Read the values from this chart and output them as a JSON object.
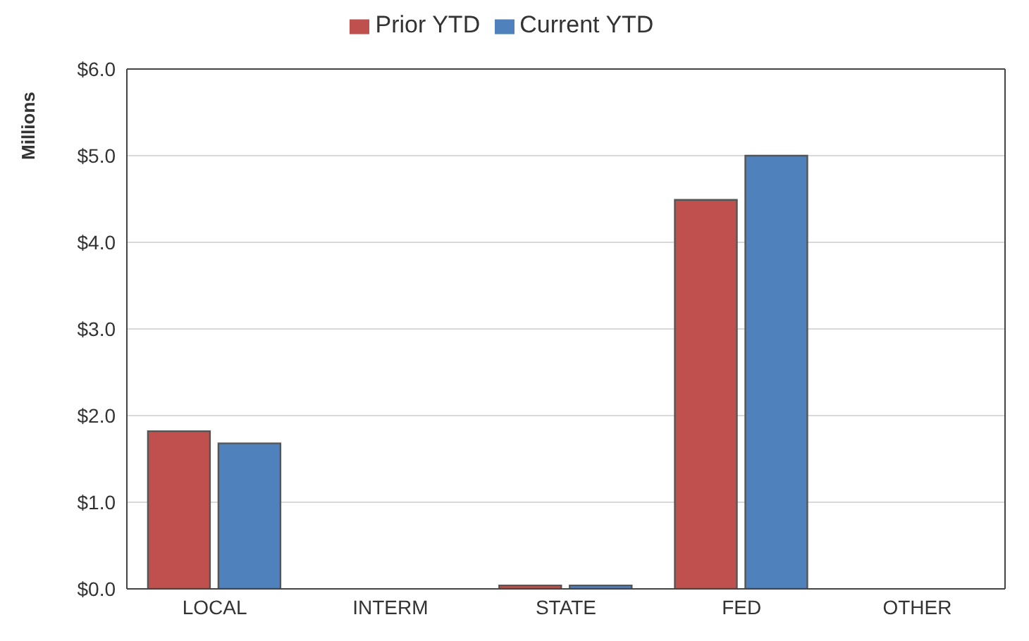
{
  "chart_data": {
    "type": "bar",
    "ylabel": "Millions",
    "categories": [
      "LOCAL",
      "INTERM",
      "STATE",
      "FED",
      "OTHER"
    ],
    "series": [
      {
        "name": "Prior YTD",
        "color": "#c0504d",
        "values": [
          1.82,
          0,
          0.04,
          4.49,
          0
        ]
      },
      {
        "name": "Current YTD",
        "color": "#4f81bd",
        "values": [
          1.68,
          0,
          0.04,
          5.0,
          0
        ]
      }
    ],
    "ylim": [
      0,
      6
    ],
    "yticks": [
      {
        "value": 0,
        "label": "$0.0"
      },
      {
        "value": 1,
        "label": "$1.0"
      },
      {
        "value": 2,
        "label": "$2.0"
      },
      {
        "value": 3,
        "label": "$3.0"
      },
      {
        "value": 4,
        "label": "$4.0"
      },
      {
        "value": 5,
        "label": "$5.0"
      },
      {
        "value": 6,
        "label": "$6.0"
      }
    ],
    "grid": "y",
    "legend": "top"
  }
}
